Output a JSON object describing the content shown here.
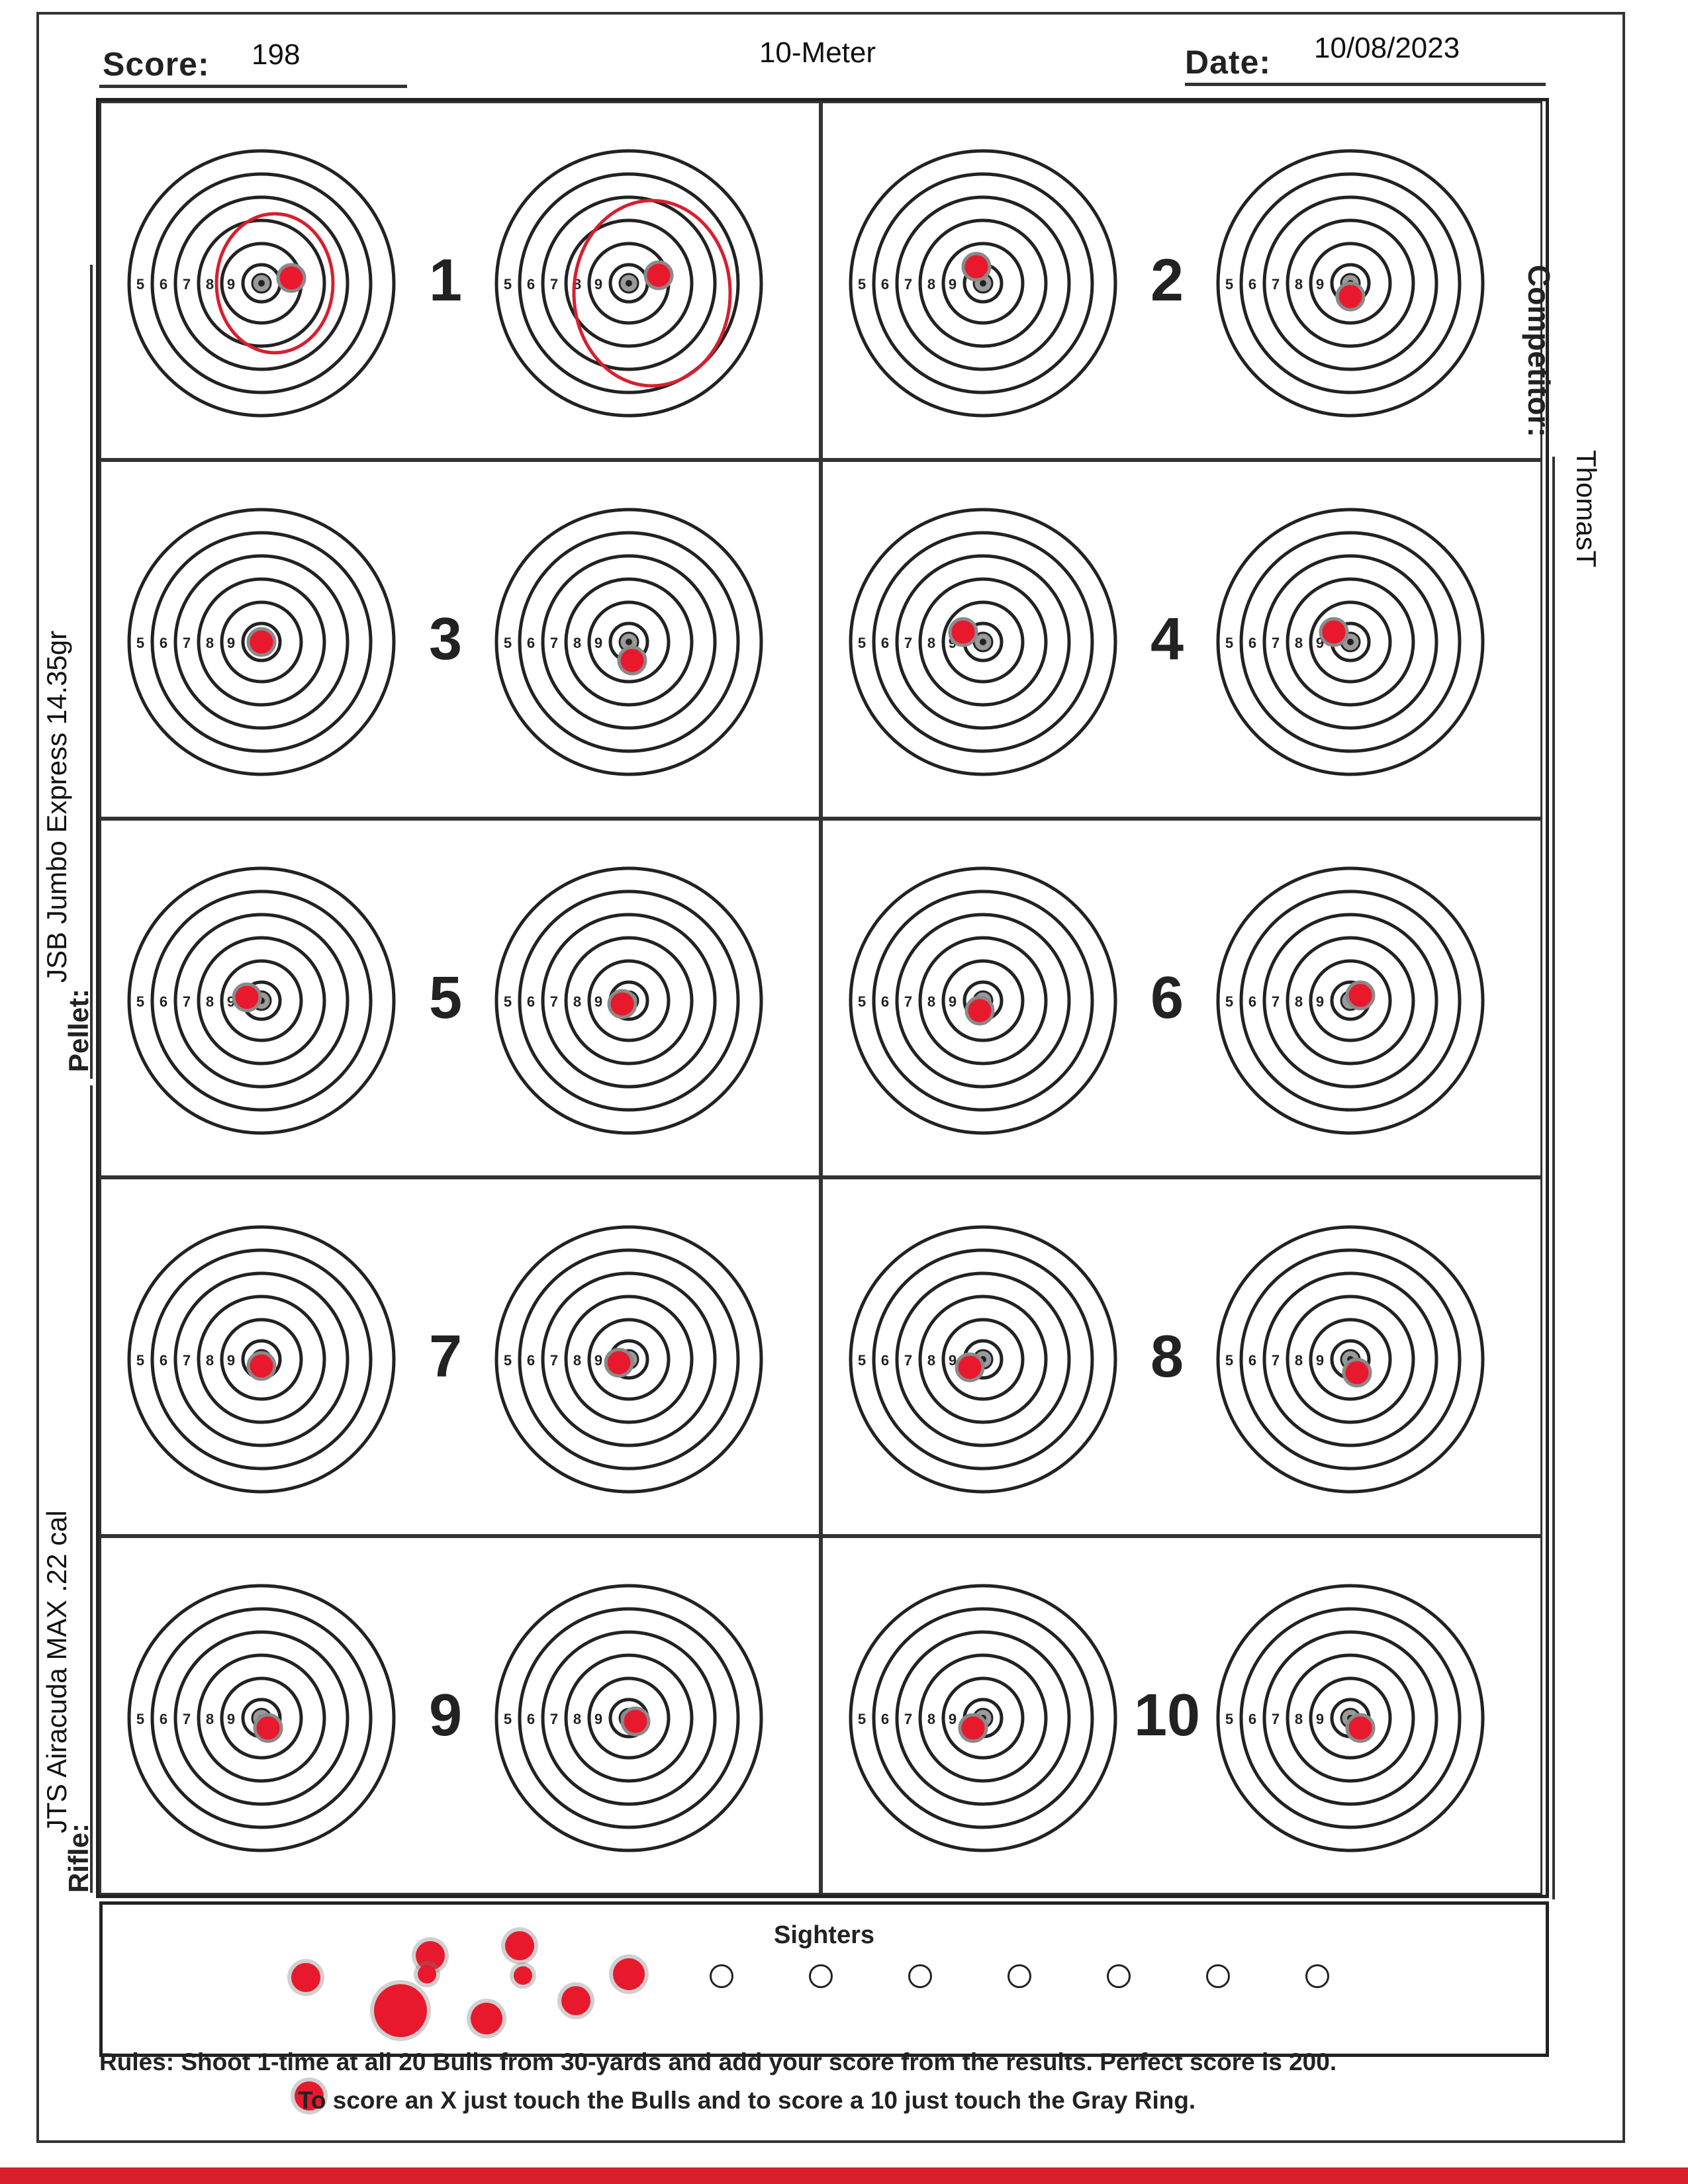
{
  "header": {
    "score_label": "Score:",
    "score_value": "198",
    "title": "10-Meter",
    "date_label": "Date:",
    "date_value": "10/08/2023"
  },
  "side": {
    "competitor_label": "Competitor:",
    "competitor_value": "ThomasT",
    "pellet_label": "Pellet:",
    "pellet_value": "JSB Jumbo Express 14.35gr",
    "rifle_label": "Rifle:",
    "rifle_value": "JTS Airacuda MAX .22 cal"
  },
  "ring_labels": [
    "5",
    "6",
    "7",
    "8",
    "9"
  ],
  "bulls": [
    {
      "number": "1"
    },
    {
      "number": "2"
    },
    {
      "number": "3"
    },
    {
      "number": "4"
    },
    {
      "number": "5"
    },
    {
      "number": "6"
    },
    {
      "number": "7"
    },
    {
      "number": "8"
    },
    {
      "number": "9"
    },
    {
      "number": "10"
    }
  ],
  "sighters": {
    "title": "Sighters"
  },
  "rules": {
    "line1": "Rules: Shoot 1-time at all 20 Bulls from 30-yards and add your score from the results. Perfect score is 200.",
    "line2": "To score an X just touch the Bulls and to score a 10 just touch the Gray Ring."
  },
  "colors": {
    "hole": "#e8192c",
    "annotation_circle": "#d71f2e",
    "ink": "#222222"
  }
}
